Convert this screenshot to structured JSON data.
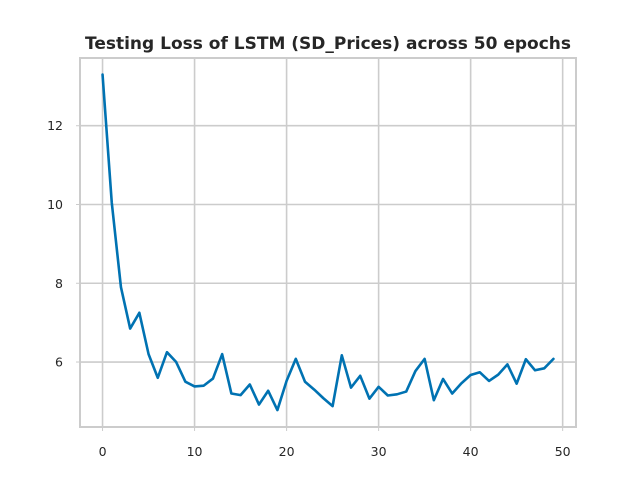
{
  "chart_data": {
    "type": "line",
    "title": "Testing Loss of LSTM (SD_Prices) across 50 epochs",
    "xlabel": "",
    "ylabel": "",
    "xlim": [
      -2.45,
      51.45
    ],
    "ylim": [
      4.35,
      13.72
    ],
    "xticks": [
      0,
      10,
      20,
      30,
      40,
      50
    ],
    "yticks": [
      6,
      8,
      10,
      12
    ],
    "grid": true,
    "series": [
      {
        "color": "#0072b2",
        "x": [
          0,
          1,
          2,
          3,
          4,
          5,
          6,
          7,
          8,
          9,
          10,
          11,
          12,
          13,
          14,
          15,
          16,
          17,
          18,
          19,
          20,
          21,
          22,
          23,
          24,
          25,
          26,
          27,
          28,
          29,
          30,
          31,
          32,
          33,
          34,
          35,
          36,
          37,
          38,
          39,
          40,
          41,
          42,
          43,
          44,
          45,
          46,
          47,
          48,
          49
        ],
        "values": [
          13.3,
          10.05,
          7.9,
          6.85,
          7.25,
          6.2,
          5.6,
          6.25,
          6.0,
          5.5,
          5.38,
          5.4,
          5.58,
          6.2,
          5.2,
          5.16,
          5.43,
          4.92,
          5.27,
          4.78,
          5.52,
          6.08,
          5.5,
          5.3,
          5.08,
          4.88,
          6.17,
          5.35,
          5.65,
          5.07,
          5.37,
          5.15,
          5.18,
          5.25,
          5.77,
          6.08,
          5.03,
          5.57,
          5.2,
          5.46,
          5.67,
          5.74,
          5.52,
          5.68,
          5.94,
          5.45,
          6.07,
          5.79,
          5.84,
          6.08
        ]
      }
    ]
  }
}
